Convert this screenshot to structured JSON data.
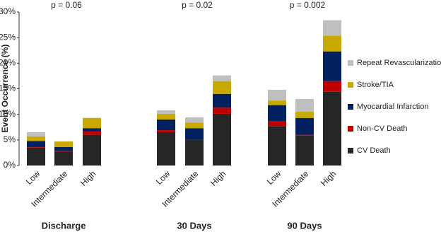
{
  "chart_data": {
    "type": "stacked-bar",
    "y_label": "Event Occurrence (%)",
    "ylim": [
      0,
      30
    ],
    "yticks": [
      {
        "value": 0,
        "label": "0%"
      },
      {
        "value": 5,
        "label": "5%"
      },
      {
        "value": 10,
        "label": "10%"
      },
      {
        "value": 15,
        "label": "15%"
      },
      {
        "value": 20,
        "label": "20%"
      },
      {
        "value": 25,
        "label": "25%"
      },
      {
        "value": 30,
        "label": "30%"
      }
    ],
    "categories": [
      "Low",
      "Intermediate",
      "High",
      "Low",
      "Intermediate",
      "High",
      "Low",
      "Intermediate",
      "High"
    ],
    "groups": [
      {
        "name": "Discharge",
        "annotation": "p = 0.06"
      },
      {
        "name": "30 Days",
        "annotation": "p = 0.02"
      },
      {
        "name": "90 Days",
        "annotation": "p = 0.002"
      }
    ],
    "series": [
      {
        "name": "CV Death",
        "color": "#262626",
        "values": [
          3.5,
          2.7,
          6.0,
          6.5,
          5.0,
          10.1,
          7.7,
          5.9,
          14.4
        ]
      },
      {
        "name": "Non-CV Death",
        "color": "#c00000",
        "values": [
          0.1,
          0.2,
          0.7,
          0.4,
          0,
          1.2,
          0.9,
          0.1,
          2.1
        ]
      },
      {
        "name": "Myocardial Infarction",
        "color": "#002060",
        "values": [
          1.2,
          0.7,
          0.6,
          2.1,
          2.3,
          2.7,
          3.2,
          3.3,
          5.8
        ]
      },
      {
        "name": "Stroke/TIA",
        "color": "#c9a800",
        "values": [
          0.9,
          1.1,
          2.0,
          1.1,
          1.1,
          2.5,
          0.9,
          1.2,
          3.1
        ]
      },
      {
        "name": "Repeat Revascularization",
        "color": "#bfbfbf",
        "values": [
          0.8,
          0,
          0,
          0.7,
          1.0,
          1.1,
          2.1,
          2.5,
          3.0
        ]
      }
    ]
  }
}
